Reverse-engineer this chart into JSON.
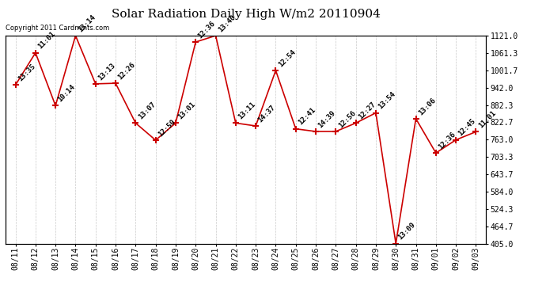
{
  "title": "Solar Radiation Daily High W/m2 20110904",
  "copyright": "Copyright 2011 Cardmints.com",
  "dates": [
    "08/11",
    "08/12",
    "08/13",
    "08/14",
    "08/15",
    "08/16",
    "08/17",
    "08/18",
    "08/19",
    "08/20",
    "08/21",
    "08/22",
    "08/23",
    "08/24",
    "08/25",
    "08/26",
    "08/27",
    "08/28",
    "08/29",
    "08/30",
    "08/31",
    "09/01",
    "09/02",
    "09/03"
  ],
  "values": [
    951,
    1062,
    880,
    1121,
    955,
    957,
    820,
    761,
    820,
    1099,
    1121,
    820,
    810,
    1001,
    800,
    791,
    791,
    820,
    855,
    405,
    835,
    717,
    762,
    790
  ],
  "labels": [
    "13:35",
    "11:01",
    "10:14",
    "13:14",
    "13:13",
    "12:26",
    "13:07",
    "12:50",
    "13:01",
    "12:36",
    "13:40",
    "13:11",
    "14:37",
    "12:54",
    "12:41",
    "14:39",
    "12:56",
    "12:27",
    "13:54",
    "13:09",
    "13:06",
    "12:36",
    "12:45",
    "11:01"
  ],
  "ylim": [
    405,
    1121
  ],
  "yticks": [
    405.0,
    464.7,
    524.3,
    584.0,
    643.7,
    703.3,
    763.0,
    822.7,
    882.3,
    942.0,
    1001.7,
    1061.3,
    1121.0
  ],
  "line_color": "#cc0000",
  "marker_color": "#cc0000",
  "bg_color": "#ffffff",
  "grid_color": "#bbbbbb",
  "title_fontsize": 11,
  "label_fontsize": 6.5,
  "tick_fontsize": 7,
  "copyright_fontsize": 6
}
